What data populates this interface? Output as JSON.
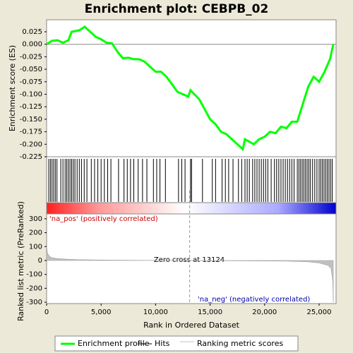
{
  "chart_data": [
    {
      "type": "line",
      "title": "Enrichment plot: CEBPB_02",
      "ylabel": "Enrichment score (ES)",
      "xlim": [
        0,
        26554
      ],
      "ylim": [
        -0.225,
        0.049
      ],
      "yticks": [
        0.025,
        {
          "value": 0,
          "label": "0.000"
        },
        -0.025,
        {
          "value": -0.05,
          "label": "-0.050"
        },
        -0.075,
        {
          "value": -0.1,
          "label": "-0.100"
        },
        -0.125,
        {
          "value": -0.15,
          "label": "-0.150"
        },
        -0.175,
        {
          "value": -0.2,
          "label": "-0.200"
        },
        -0.225
      ],
      "series": [
        {
          "name": "Enrichment profile",
          "color": "#00ff00",
          "x": [
            0,
            500,
            1000,
            1500,
            2000,
            2300,
            3000,
            3500,
            4000,
            4500,
            5000,
            5500,
            6000,
            6500,
            7000,
            7500,
            8000,
            8500,
            9000,
            9500,
            10000,
            10500,
            11000,
            11500,
            12000,
            12500,
            13000,
            13200,
            14000,
            14500,
            15000,
            15500,
            16000,
            16500,
            17000,
            17500,
            18000,
            18200,
            19000,
            19500,
            20000,
            20500,
            21000,
            21500,
            22000,
            22500,
            23000,
            23500,
            24000,
            24500,
            25000,
            25500,
            26000,
            26300
          ],
          "values": [
            0,
            0.007,
            0.008,
            0.003,
            0.008,
            0.025,
            0.028,
            0.035,
            0.025,
            0.015,
            0.01,
            0.003,
            0.002,
            -0.015,
            -0.028,
            -0.027,
            -0.03,
            -0.03,
            -0.035,
            -0.045,
            -0.055,
            -0.055,
            -0.065,
            -0.08,
            -0.095,
            -0.1,
            -0.105,
            -0.092,
            -0.11,
            -0.13,
            -0.15,
            -0.16,
            -0.175,
            -0.18,
            -0.19,
            -0.2,
            -0.21,
            -0.19,
            -0.2,
            -0.19,
            -0.185,
            -0.175,
            -0.178,
            -0.165,
            -0.168,
            -0.155,
            -0.155,
            -0.12,
            -0.085,
            -0.065,
            -0.075,
            -0.055,
            -0.03,
            0
          ]
        }
      ]
    },
    {
      "type": "hits",
      "xlim": [
        0,
        26554
      ],
      "series": [
        {
          "name": "Hits",
          "color": "#000000",
          "x": [
            200,
            350,
            500,
            650,
            800,
            950,
            1300,
            1500,
            1700,
            1850,
            2000,
            2150,
            2300,
            2450,
            2600,
            2800,
            3000,
            3200,
            3450,
            3700,
            4100,
            4400,
            4700,
            5000,
            5300,
            5600,
            5900,
            6600,
            7100,
            7400,
            7700,
            8000,
            8400,
            8800,
            9200,
            9800,
            10100,
            10400,
            10900,
            12100,
            12400,
            12700,
            13200,
            13300,
            14300,
            15200,
            15500,
            16100,
            16400,
            16700,
            17100,
            17600,
            17900,
            18200,
            18400,
            18600,
            18900,
            19100,
            19300,
            19500,
            19700,
            19900,
            20100,
            20300,
            20600,
            20900,
            21100,
            21300,
            21500,
            21700,
            21900,
            22100,
            22300,
            22500,
            22700,
            23000,
            23150,
            23300,
            23450,
            23600,
            23750,
            23900,
            24050,
            24200,
            24400,
            24600,
            24800,
            25000,
            25150,
            25300,
            25450,
            25600,
            25750,
            25900,
            26050,
            26200
          ]
        }
      ]
    },
    {
      "type": "area",
      "ylabel": "Ranked list metric (PreRanked)",
      "xlabel": "Rank in Ordered Dataset",
      "xlim": [
        0,
        26554
      ],
      "ylim": [
        -310,
        335
      ],
      "xticks": [
        0,
        {
          "value": 5000,
          "label": "5,000"
        },
        {
          "value": 10000,
          "label": "10,000"
        },
        {
          "value": 15000,
          "label": "15,000"
        },
        {
          "value": 20000,
          "label": "20,000"
        },
        {
          "value": 25000,
          "label": "25,000"
        }
      ],
      "yticks": [
        300,
        200,
        100,
        0,
        -100,
        -200,
        -300
      ],
      "pos_label": "'na_pos' (positively correlated)",
      "neg_label": "'na_neg' (negatively correlated)",
      "zero_cross": {
        "value": 13124,
        "label": "Zero cross at 13124"
      },
      "series": [
        {
          "name": "Ranking metric scores",
          "color": "#c0c0c0",
          "x": [
            0,
            100,
            300,
            500,
            1000,
            2000,
            3000,
            6000,
            10000,
            13124,
            17000,
            22000,
            24000,
            25000,
            25800,
            26100,
            26250,
            26300
          ],
          "values": [
            100,
            50,
            28,
            20,
            14,
            9,
            6,
            3,
            1,
            0,
            -2,
            -5,
            -10,
            -18,
            -35,
            -60,
            -150,
            -300
          ]
        }
      ]
    }
  ]
}
